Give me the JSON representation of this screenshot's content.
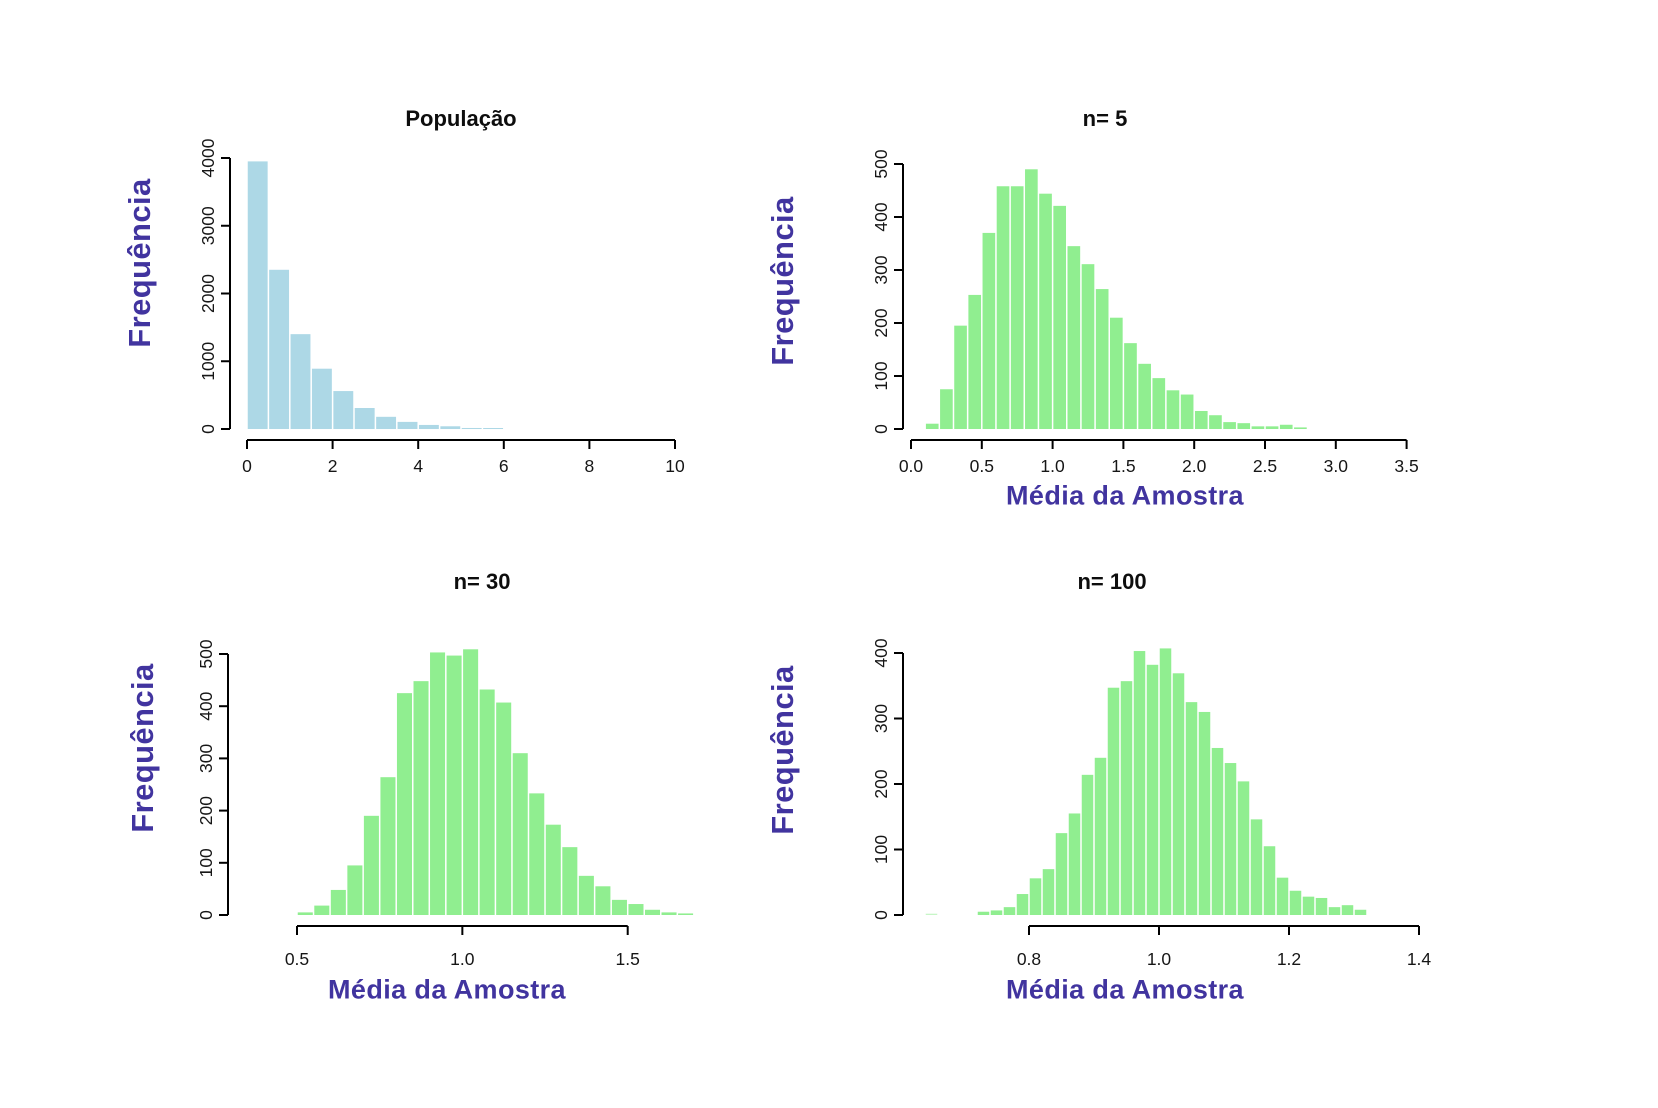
{
  "page": {
    "background": "#ffffff"
  },
  "colors": {
    "bar_blue": "#ADD8E6",
    "bar_green": "#90EE90",
    "label_purple": "#41349F",
    "axis_black": "#000000",
    "tick_text": "#161616",
    "title_text": "#0d0d0d"
  },
  "chart_data": [
    {
      "id": "populacao",
      "type": "bar",
      "title": "População",
      "ylabel": "Frequência",
      "bar_color": "#ADD8E6",
      "xlim": [
        0,
        10
      ],
      "ylim": [
        0,
        4000
      ],
      "x_tick_labels": [
        "0",
        "2",
        "4",
        "6",
        "8",
        "10"
      ],
      "x_tick_values": [
        0,
        2,
        4,
        6,
        8,
        10
      ],
      "y_tick_labels": [
        "0",
        "1000",
        "2000",
        "3000",
        "4000"
      ],
      "y_tick_values": [
        0,
        1000,
        2000,
        3000,
        4000
      ],
      "bin_start": 0,
      "bin_width": 0.5,
      "values": [
        3950,
        2350,
        1400,
        890,
        560,
        310,
        180,
        105,
        60,
        40,
        15,
        6
      ]
    },
    {
      "id": "n5",
      "type": "bar",
      "title": "n= 5",
      "ylabel": "Frequência",
      "xlabel": "Média da Amostra",
      "bar_color": "#90EE90",
      "xlim": [
        0,
        3.5
      ],
      "ylim": [
        0,
        500
      ],
      "x_tick_labels": [
        "0.0",
        "0.5",
        "1.0",
        "1.5",
        "2.0",
        "2.5",
        "3.0",
        "3.5"
      ],
      "x_tick_values": [
        0,
        0.5,
        1,
        1.5,
        2,
        2.5,
        3,
        3.5
      ],
      "y_tick_labels": [
        "0",
        "100",
        "200",
        "300",
        "400",
        "500"
      ],
      "y_tick_values": [
        0,
        100,
        200,
        300,
        400,
        500
      ],
      "bin_start": 0.1,
      "bin_width": 0.1,
      "values": [
        10,
        75,
        195,
        253,
        370,
        458,
        458,
        490,
        444,
        421,
        345,
        311,
        264,
        210,
        162,
        123,
        96,
        73,
        65,
        34,
        26,
        13,
        11,
        5,
        5,
        8,
        3
      ]
    },
    {
      "id": "n30",
      "type": "bar",
      "title": "n= 30",
      "ylabel": "Frequência",
      "xlabel": "Média da Amostra",
      "bar_color": "#90EE90",
      "xlim": [
        0.5,
        1.5
      ],
      "ylim": [
        0,
        500
      ],
      "x_tick_labels": [
        "0.5",
        "1.0",
        "1.5"
      ],
      "x_tick_values": [
        0.5,
        1,
        1.5
      ],
      "y_tick_labels": [
        "0",
        "100",
        "200",
        "300",
        "400",
        "500"
      ],
      "y_tick_values": [
        0,
        100,
        200,
        300,
        400,
        500
      ],
      "bin_start": 0.5,
      "bin_width": 0.05,
      "values": [
        5,
        18,
        48,
        95,
        190,
        264,
        425,
        448,
        503,
        497,
        509,
        432,
        407,
        310,
        233,
        173,
        130,
        75,
        55,
        29,
        21,
        10,
        5,
        3
      ]
    },
    {
      "id": "n100",
      "type": "bar",
      "title": "n= 100",
      "ylabel": "Frequência",
      "xlabel": "Média da Amostra",
      "bar_color": "#90EE90",
      "xlim": [
        0.8,
        1.4
      ],
      "ylim": [
        0,
        400
      ],
      "x_tick_labels": [
        "0.8",
        "1.0",
        "1.2",
        "1.4"
      ],
      "x_tick_values": [
        0.8,
        1,
        1.2,
        1.4
      ],
      "y_tick_labels": [
        "0",
        "100",
        "200",
        "300",
        "400"
      ],
      "y_tick_values": [
        0,
        100,
        200,
        300,
        400
      ],
      "bin_start": 0.64,
      "bin_width": 0.02,
      "values": [
        2,
        0,
        0,
        0,
        5,
        7,
        12,
        32,
        56,
        70,
        125,
        155,
        214,
        240,
        347,
        357,
        403,
        382,
        407,
        369,
        325,
        310,
        255,
        232,
        204,
        146,
        105,
        57,
        37,
        28,
        26,
        12,
        15,
        8
      ]
    }
  ]
}
